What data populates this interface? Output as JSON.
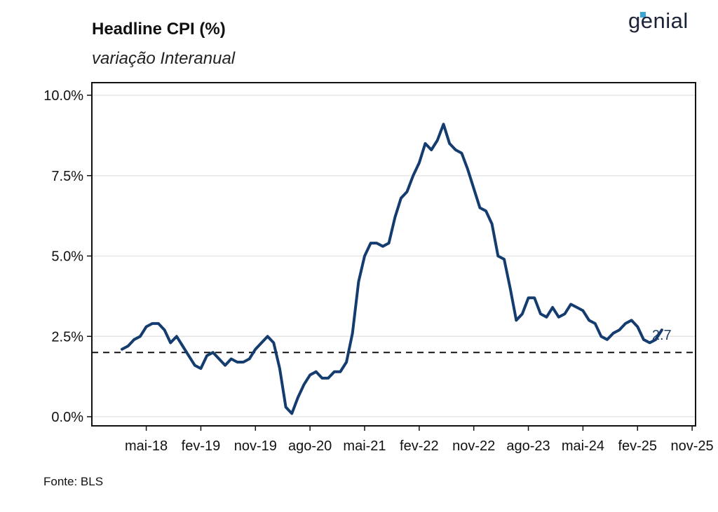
{
  "header": {
    "title": "Headline CPI (%)",
    "subtitle": "variação Interanual",
    "brand": "genial"
  },
  "footer": {
    "source": "Fonte: BLS"
  },
  "colors": {
    "line": "#143c6e",
    "reference": "#111111",
    "grid": "#e6e6e6",
    "accent": "#3aa6d8"
  },
  "chart_data": {
    "type": "line",
    "title": "Headline CPI (%)",
    "subtitle": "variação Interanual",
    "xlabel": "",
    "ylabel": "",
    "ylim": [
      0,
      10.2
    ],
    "grid": true,
    "legend": "none",
    "y_ticks": [
      0,
      2.5,
      5,
      7.5,
      10
    ],
    "y_tick_labels": [
      "0.0%",
      "2.5%",
      "5.0%",
      "7.5%",
      "10.0%"
    ],
    "x_ticks": [
      "2018-05",
      "2019-02",
      "2019-11",
      "2020-08",
      "2021-05",
      "2022-02",
      "2022-11",
      "2023-08",
      "2024-05",
      "2025-02",
      "2025-11"
    ],
    "x_tick_labels": [
      "mai-18",
      "fev-19",
      "nov-19",
      "ago-20",
      "mai-21",
      "fev-22",
      "nov-22",
      "ago-23",
      "mai-24",
      "fev-25",
      "nov-25"
    ],
    "reference_line": {
      "y": 2.0,
      "style": "dashed"
    },
    "last_label": "2.7",
    "series": [
      {
        "x": [
          "2018-01",
          "2018-02",
          "2018-03",
          "2018-04",
          "2018-05",
          "2018-06",
          "2018-07",
          "2018-08",
          "2018-09",
          "2018-10",
          "2018-11",
          "2018-12",
          "2019-01",
          "2019-02",
          "2019-03",
          "2019-04",
          "2019-05",
          "2019-06",
          "2019-07",
          "2019-08",
          "2019-09",
          "2019-10",
          "2019-11",
          "2019-12",
          "2020-01",
          "2020-02",
          "2020-03",
          "2020-04",
          "2020-05",
          "2020-06",
          "2020-07",
          "2020-08",
          "2020-09",
          "2020-10",
          "2020-11",
          "2020-12",
          "2021-01",
          "2021-02",
          "2021-03",
          "2021-04",
          "2021-05",
          "2021-06",
          "2021-07",
          "2021-08",
          "2021-09",
          "2021-10",
          "2021-11",
          "2021-12",
          "2022-01",
          "2022-02",
          "2022-03",
          "2022-04",
          "2022-05",
          "2022-06",
          "2022-07",
          "2022-08",
          "2022-09",
          "2022-10",
          "2022-11",
          "2022-12",
          "2023-01",
          "2023-02",
          "2023-03",
          "2023-04",
          "2023-05",
          "2023-06",
          "2023-07",
          "2023-08",
          "2023-09",
          "2023-10",
          "2023-11",
          "2023-12",
          "2024-01",
          "2024-02",
          "2024-03",
          "2024-04",
          "2024-05",
          "2024-06",
          "2024-07",
          "2024-08",
          "2024-09",
          "2024-10",
          "2024-11",
          "2024-12",
          "2025-01",
          "2025-02",
          "2025-03",
          "2025-04",
          "2025-05",
          "2025-06"
        ],
        "values": [
          2.1,
          2.2,
          2.4,
          2.5,
          2.8,
          2.9,
          2.9,
          2.7,
          2.3,
          2.5,
          2.2,
          1.9,
          1.6,
          1.5,
          1.9,
          2.0,
          1.8,
          1.6,
          1.8,
          1.7,
          1.7,
          1.8,
          2.1,
          2.3,
          2.5,
          2.3,
          1.5,
          0.3,
          0.1,
          0.6,
          1.0,
          1.3,
          1.4,
          1.2,
          1.2,
          1.4,
          1.4,
          1.7,
          2.6,
          4.2,
          5.0,
          5.4,
          5.4,
          5.3,
          5.4,
          6.2,
          6.8,
          7.0,
          7.5,
          7.9,
          8.5,
          8.3,
          8.6,
          9.1,
          8.5,
          8.3,
          8.2,
          7.7,
          7.1,
          6.5,
          6.4,
          6.0,
          5.0,
          4.9,
          4.0,
          3.0,
          3.2,
          3.7,
          3.7,
          3.2,
          3.1,
          3.4,
          3.1,
          3.2,
          3.5,
          3.4,
          3.3,
          3.0,
          2.9,
          2.5,
          2.4,
          2.6,
          2.7,
          2.9,
          3.0,
          2.8,
          2.4,
          2.3,
          2.4,
          2.7
        ]
      }
    ]
  }
}
